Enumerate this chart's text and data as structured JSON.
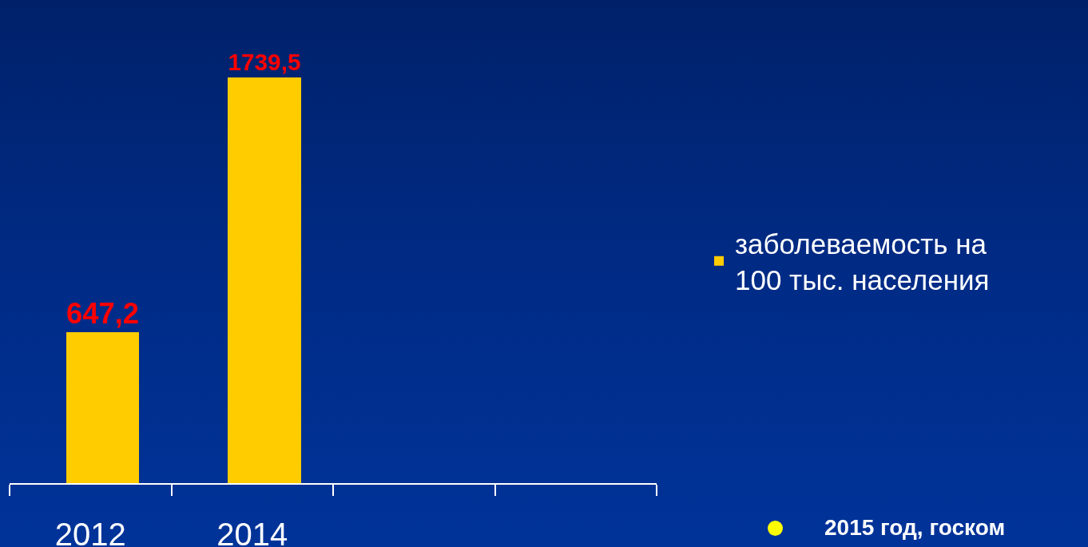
{
  "chart_data": {
    "type": "bar",
    "categories": [
      "2012",
      "2014",
      null,
      null
    ],
    "series": [
      {
        "name": "заболеваемость на 100 тыс. населения",
        "color": "#ffcc00",
        "values": [
          647.2,
          1739.5,
          null,
          null
        ],
        "value_labels": [
          "647,2",
          "1739,5",
          null,
          null
        ]
      }
    ],
    "legend": "right",
    "tick_labels": "x",
    "annotations": [
      "2015 год, госком"
    ]
  }
}
